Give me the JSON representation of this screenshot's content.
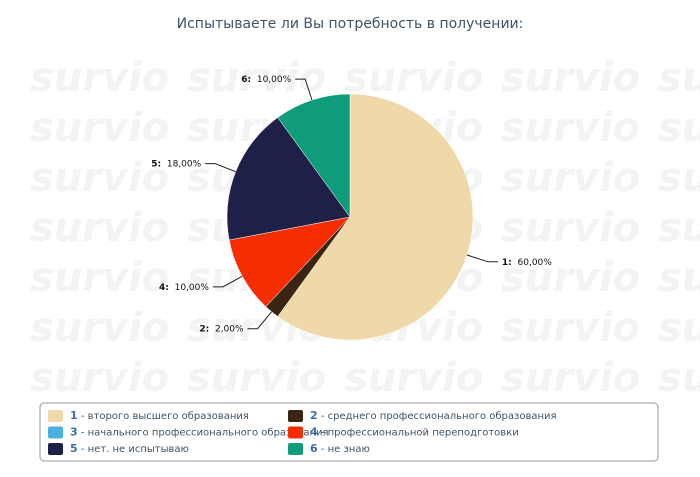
{
  "chart_data": {
    "type": "pie",
    "title": "Испытываете ли Вы потребность в получении:",
    "watermark": "survio",
    "categories": [
      "1",
      "2",
      "3",
      "4",
      "5",
      "6"
    ],
    "slice_labels": [
      "1:",
      "2:",
      null,
      "4:",
      "5:",
      "6:"
    ],
    "descriptions": [
      " - второго высшего образования",
      " - среднего профессионального образования",
      " - начального профессионального образования",
      " - профессиональной переподготовки",
      " - нет. не испытываю",
      " - не знаю"
    ],
    "values": [
      60,
      2,
      0,
      10,
      18,
      10
    ],
    "value_labels": [
      "60,00%",
      "2,00%",
      null,
      "10,00%",
      "18,00%",
      "10,00%"
    ],
    "colors": [
      "#f0d9a8",
      "#3a2412",
      "#4ab0e0",
      "#f52d00",
      "#1e2048",
      "#0e9c7a"
    ]
  }
}
